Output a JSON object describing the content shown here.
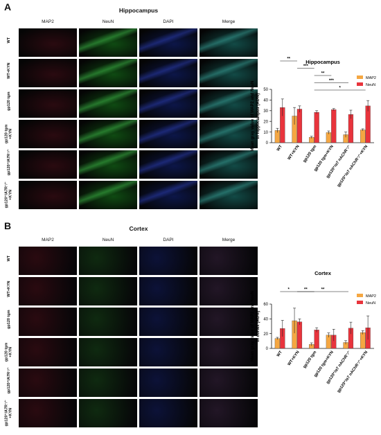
{
  "figure": {
    "panels": [
      {
        "id": "A",
        "letter": "A",
        "title": "Hippocampus",
        "columns": [
          "MAP2",
          "NeuN",
          "DAPI",
          "Merge"
        ],
        "rows": [
          {
            "label": "WT",
            "sup": ""
          },
          {
            "label": "WT+KYN",
            "sup": ""
          },
          {
            "label": "gp120 tgm",
            "sup": ""
          },
          {
            "label": "gp120 tgm\n+KYN",
            "sup": ""
          },
          {
            "label": "gp120⁺/A7R⁻⁄⁻",
            "sup": ""
          },
          {
            "label": "gp120⁺/A7R⁻⁄⁻\n+KYN",
            "sup": ""
          }
        ],
        "channel_colors": {
          "MAP2": "#2a0a10",
          "NeuN": "#0f4a12",
          "DAPI": "#0c1648",
          "Merge": "#124a46"
        }
      },
      {
        "id": "B",
        "letter": "B",
        "title": "Cortex",
        "columns": [
          "MAP2",
          "NeuN",
          "DAPI",
          "Merge"
        ],
        "rows": [
          {
            "label": "WT"
          },
          {
            "label": "WT+KYN"
          },
          {
            "label": "gp120 tgm"
          },
          {
            "label": "gp120 tgm\n+KYN"
          },
          {
            "label": "gp120⁺/A7R⁻⁄⁻"
          },
          {
            "label": "gp120⁺/A7R⁻⁄⁻\n+KYN"
          }
        ],
        "channel_colors": {
          "MAP2": "#2a0a10",
          "NeuN": "#0f2a10",
          "DAPI": "#0c1238",
          "Merge": "#221626"
        }
      }
    ]
  },
  "chart_data": [
    {
      "type": "bar",
      "title": "Hippocampus",
      "ylabel": "Mean gray value of MAP2 and NeuN\nin hippocampus (AU%)",
      "ylim": [
        0,
        50
      ],
      "yticks": [
        0,
        10,
        20,
        30,
        40,
        50
      ],
      "categories": [
        "WT",
        "WT+KYN",
        "gp120 tgm",
        "gp120 tgm+KYN",
        "gp120⁺/α7 nAChR⁻⁄⁻",
        "gp120⁺/α7 nAChR⁻⁄⁻+KYN"
      ],
      "series": [
        {
          "name": "MAP2",
          "color": "#f5a742",
          "values": [
            11.5,
            25,
            5,
            9.5,
            7.5,
            12
          ],
          "errors": [
            2,
            8,
            1,
            1.5,
            2.5,
            1
          ]
        },
        {
          "name": "NeuN",
          "color": "#e8343c",
          "values": [
            33,
            31.5,
            28.5,
            31,
            26.5,
            34.5
          ],
          "errors": [
            8,
            3,
            1.5,
            1,
            4,
            5
          ]
        }
      ],
      "significance": [
        {
          "from": 0,
          "to": 1,
          "label": "**"
        },
        {
          "from": 1,
          "to": 2,
          "label": "***"
        },
        {
          "from": 2,
          "to": 3,
          "label": "**"
        },
        {
          "from": 2,
          "to": 4,
          "label": "***"
        },
        {
          "from": 2,
          "to": 5,
          "label": "*"
        }
      ],
      "legend_position": "top-right"
    },
    {
      "type": "bar",
      "title": "Cortex",
      "ylabel": "Mean gray value of MAP2 and NeuN\nin cortex (AU%)",
      "ylim": [
        0,
        60
      ],
      "yticks": [
        0,
        20,
        40,
        60
      ],
      "categories": [
        "WT",
        "WT+KYN",
        "gp120 tgm",
        "gp120 tgm+KYN",
        "gp120⁺/α7 nAChR⁻⁄⁻",
        "gp120⁺/α7 nAChR⁻⁄⁻+KYN"
      ],
      "series": [
        {
          "name": "MAP2",
          "color": "#f5a742",
          "values": [
            13.5,
            37.5,
            5.5,
            18,
            8,
            21.5
          ],
          "errors": [
            1.5,
            17,
            2,
            3,
            2.5,
            2.5
          ]
        },
        {
          "name": "NeuN",
          "color": "#e8343c",
          "values": [
            27,
            36,
            25,
            18,
            27.5,
            28
          ],
          "errors": [
            11,
            4,
            3,
            8,
            8,
            16
          ]
        }
      ],
      "significance": [
        {
          "from": 0,
          "to": 1,
          "label": "*"
        },
        {
          "from": 1,
          "to": 2,
          "label": "**"
        },
        {
          "from": 1,
          "to": 4,
          "label": "**"
        }
      ],
      "legend_position": "top-right"
    }
  ]
}
